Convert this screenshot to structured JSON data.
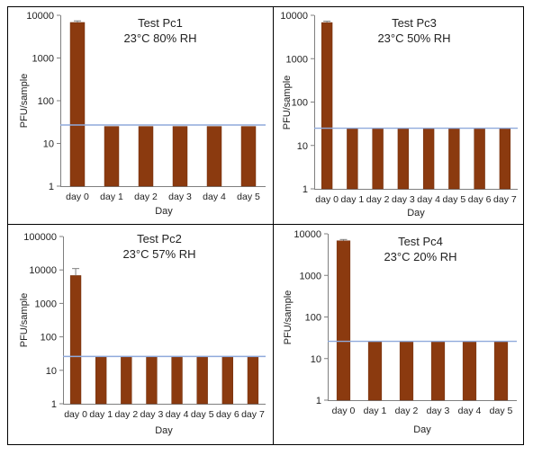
{
  "figure": {
    "border_color": "#000000"
  },
  "colors": {
    "bar": "#8B3A0F",
    "bar_edge": "#6E2C0A",
    "threshold": "#8FAADC",
    "axis": "#7F7F7F",
    "text": "#222222"
  },
  "chart_data": [
    {
      "type": "bar",
      "title": "Test Pc1",
      "subtitle": "23°C 80% RH",
      "xlabel": "Day",
      "ylabel": "PFU/sample",
      "yscale": "log",
      "ylim": [
        1,
        10000
      ],
      "yticks": [
        "1",
        "10",
        "100",
        "1000",
        "10000"
      ],
      "categories": [
        "day 0",
        "day 1",
        "day 2",
        "day 3",
        "day 4",
        "day 5"
      ],
      "values": [
        6800,
        25,
        25,
        25,
        25,
        25
      ],
      "error_upper": [
        7400,
        null,
        null,
        null,
        null,
        null
      ],
      "threshold": 27,
      "grid": false,
      "legend": "none"
    },
    {
      "type": "bar",
      "title": "Test Pc3",
      "subtitle": "23°C 50% RH",
      "xlabel": "Day",
      "ylabel": "PFU/sample",
      "yscale": "log",
      "ylim": [
        1,
        10000
      ],
      "yticks": [
        "1",
        "10",
        "100",
        "1000",
        "10000"
      ],
      "categories": [
        "day 0",
        "day 1",
        "day 2",
        "day 3",
        "day 4",
        "day 5",
        "day 6",
        "day 7"
      ],
      "values": [
        6800,
        25,
        25,
        25,
        25,
        25,
        25,
        25
      ],
      "error_upper": [
        7300,
        null,
        null,
        null,
        null,
        null,
        null,
        null
      ],
      "threshold": 25,
      "grid": false,
      "legend": "none"
    },
    {
      "type": "bar",
      "title": "Test Pc2",
      "subtitle": "23°C 57% RH",
      "xlabel": "Day",
      "ylabel": "PFU/sample",
      "yscale": "log",
      "ylim": [
        1,
        100000
      ],
      "yticks": [
        "1",
        "10",
        "100",
        "1000",
        "10000",
        "100000"
      ],
      "categories": [
        "day 0",
        "day 1",
        "day 2",
        "day 3",
        "day 4",
        "day 5",
        "day 6",
        "day 7"
      ],
      "values": [
        6800,
        25,
        25,
        25,
        25,
        25,
        25,
        25
      ],
      "error_upper": [
        11000,
        null,
        null,
        null,
        null,
        null,
        null,
        null
      ],
      "threshold": 26,
      "grid": false,
      "legend": "none"
    },
    {
      "type": "bar",
      "title": "Test Pc4",
      "subtitle": "23°C 20% RH",
      "xlabel": "Day",
      "ylabel": "PFU/sample",
      "yscale": "log",
      "ylim": [
        1,
        10000
      ],
      "yticks": [
        "1",
        "10",
        "100",
        "1000",
        "10000"
      ],
      "categories": [
        "day 0",
        "day 1",
        "day 2",
        "day 3",
        "day 4",
        "day 5"
      ],
      "values": [
        6800,
        25,
        25,
        25,
        25,
        25
      ],
      "error_upper": [
        7300,
        null,
        null,
        null,
        null,
        null
      ],
      "threshold": 26,
      "grid": false,
      "legend": "none"
    }
  ]
}
